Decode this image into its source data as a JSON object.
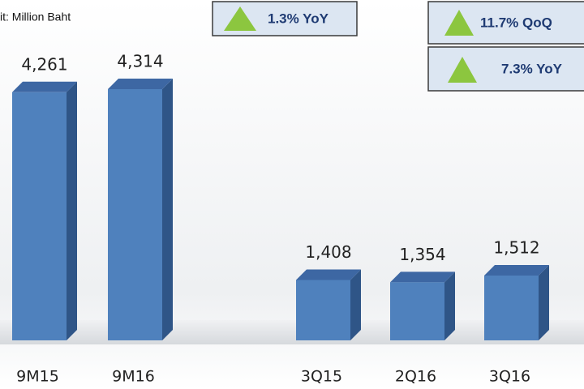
{
  "chart_data": [
    {
      "type": "bar",
      "title": "it: Million Baht",
      "categories": [
        "9M15",
        "9M16"
      ],
      "values": [
        4261,
        4314
      ],
      "value_labels": [
        "4,261",
        "4,314"
      ],
      "color": "#4f81bd",
      "annotations": [
        "1.3% YoY"
      ]
    },
    {
      "type": "bar",
      "categories": [
        "3Q15",
        "2Q16",
        "3Q16"
      ],
      "values": [
        1408,
        1354,
        1512
      ],
      "value_labels": [
        "1,408",
        "1,354",
        "1,512"
      ],
      "color": "#4f81bd",
      "annotations": [
        "11.7% QoQ",
        "7.3% YoY"
      ]
    }
  ]
}
